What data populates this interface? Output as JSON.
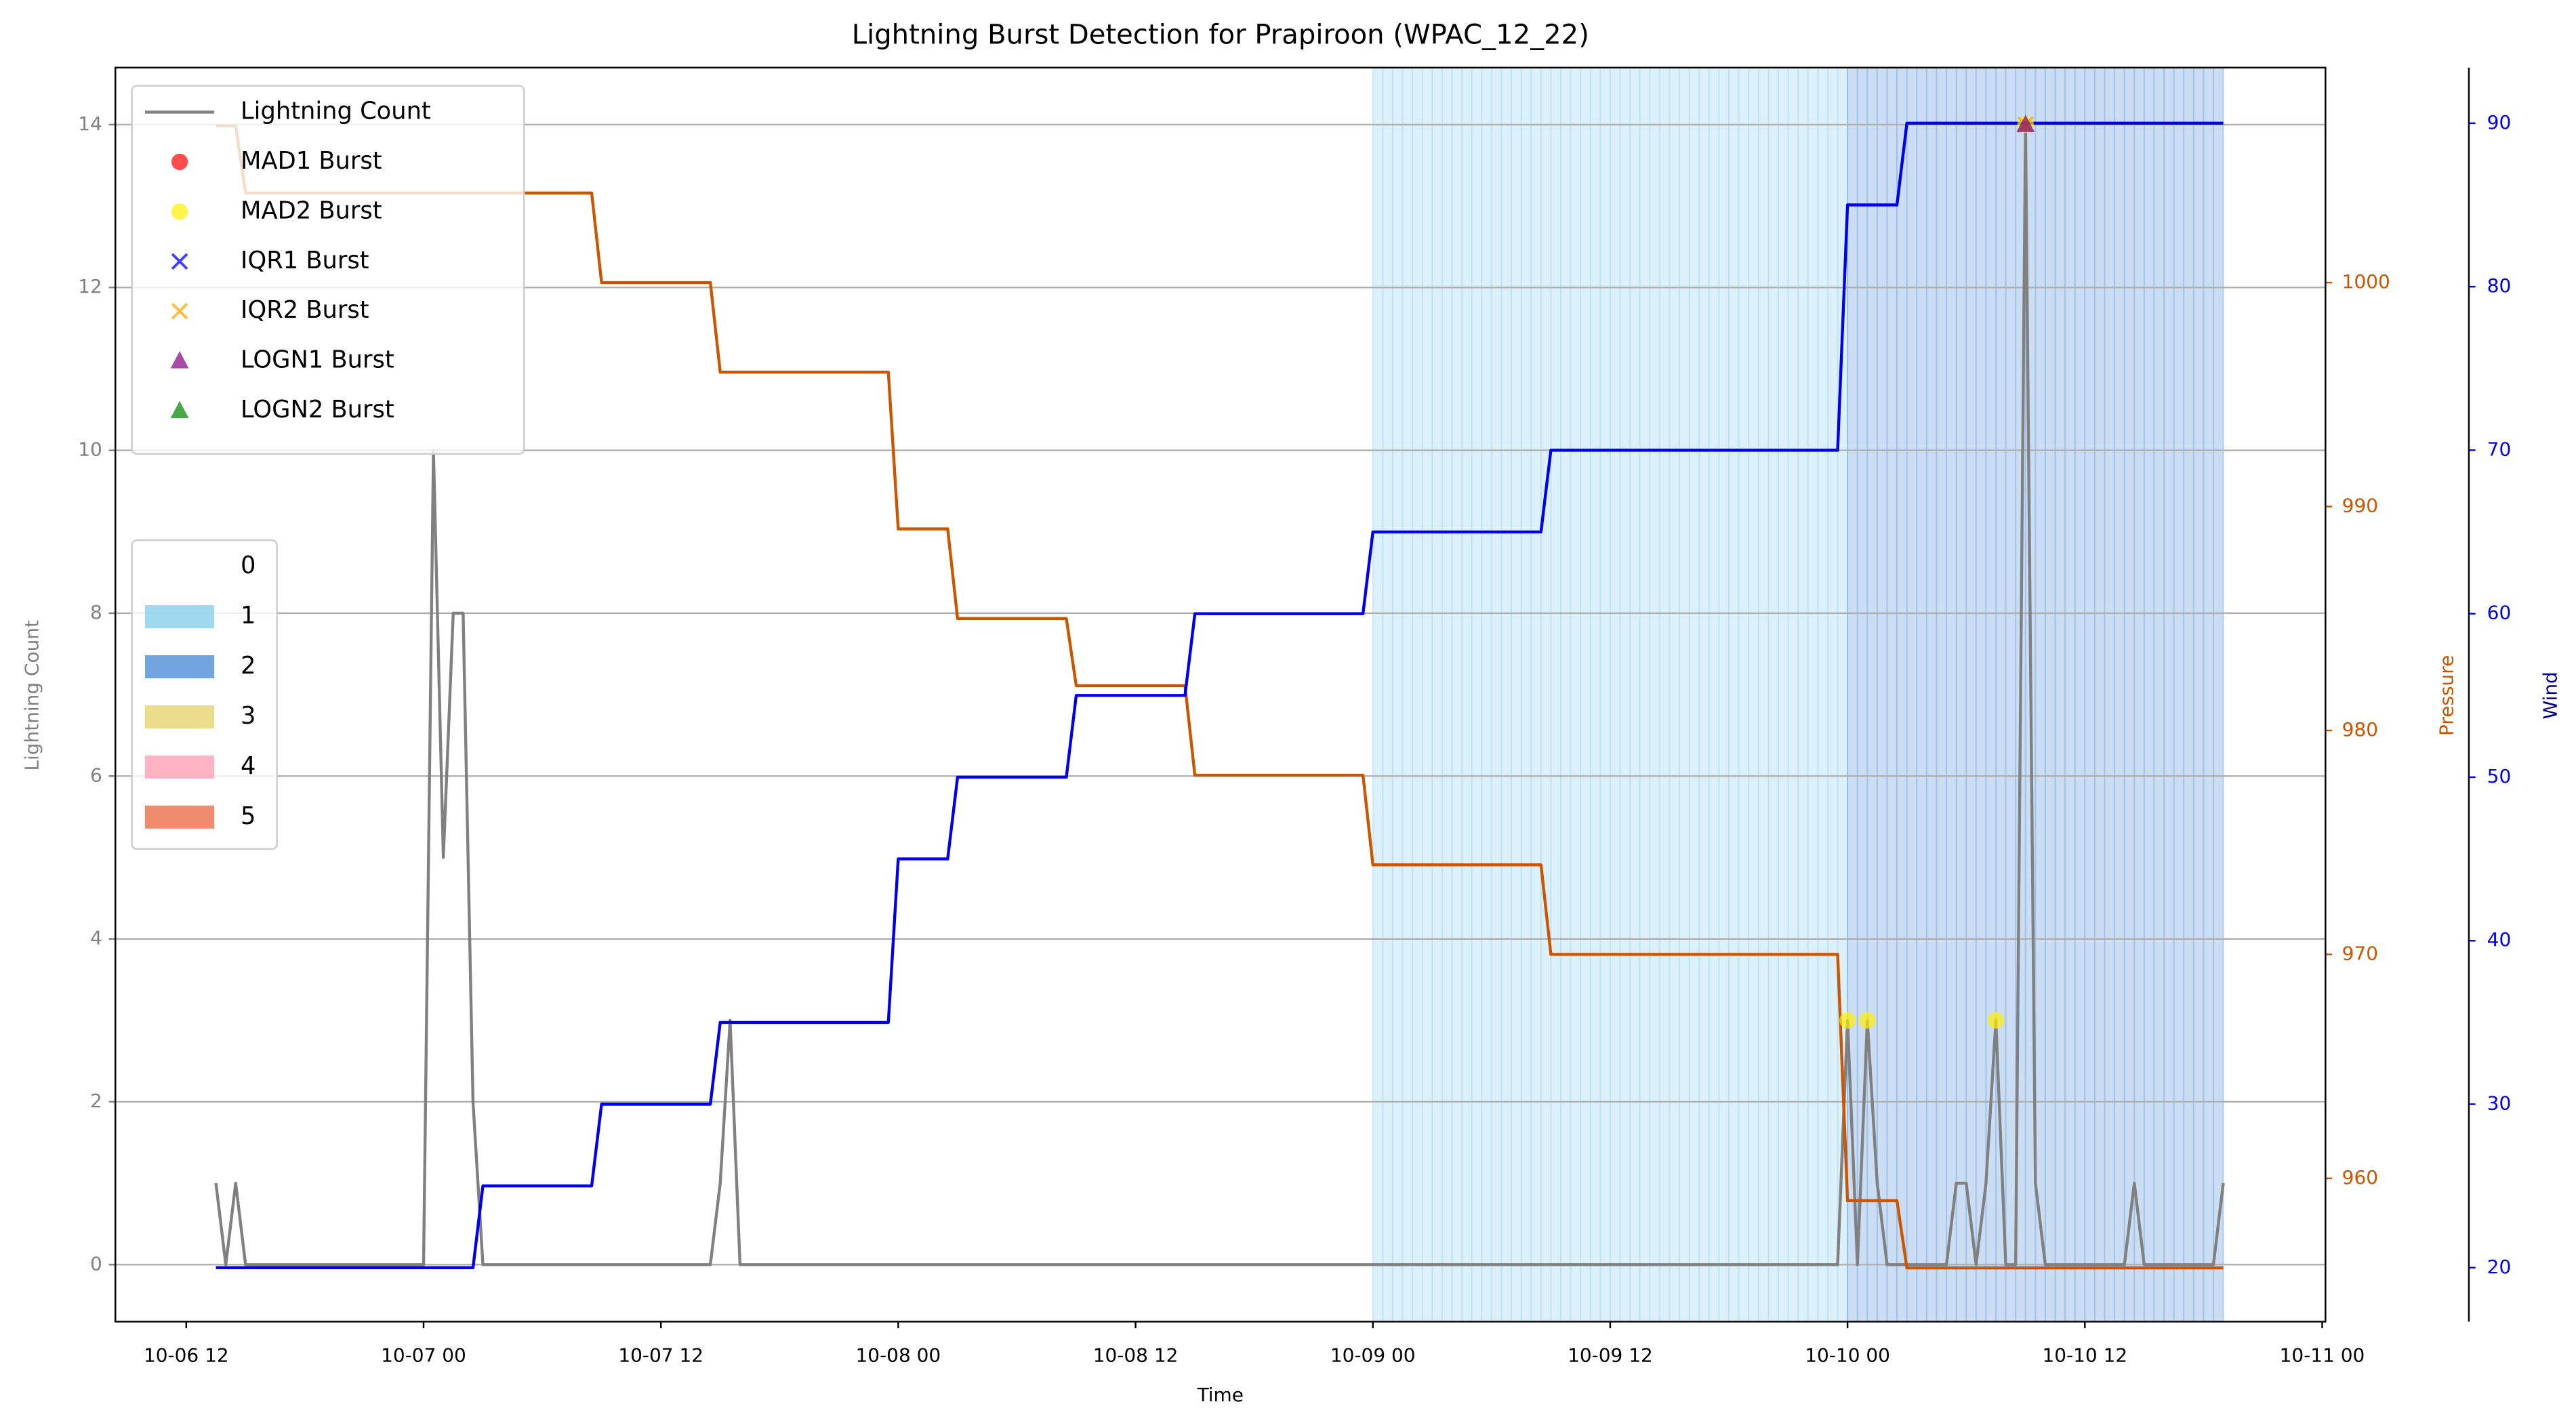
{
  "chart_data": {
    "type": "line",
    "title": "Lightning Burst Detection for Prapiroon (WPAC_12_22)",
    "xlabel": "Time",
    "ylabel": "Lightning Count",
    "xlim": [
      "10-06 08:25",
      "10-11 00:10"
    ],
    "xticks": [
      "10-06 12",
      "10-07 00",
      "10-07 12",
      "10-08 00",
      "10-08 12",
      "10-09 00",
      "10-09 12",
      "10-10 00",
      "10-10 12",
      "10-11 00"
    ],
    "ylim": [
      -0.7,
      14.7
    ],
    "yticks": [
      0,
      2,
      4,
      6,
      8,
      10,
      12,
      14
    ],
    "y2lim": [
      953.6,
      1009.6
    ],
    "y2ticks": [
      960,
      970,
      980,
      990,
      1000
    ],
    "y3lim": [
      16.7,
      93.4
    ],
    "y3ticks": [
      20,
      30,
      40,
      50,
      60,
      70,
      80,
      90
    ],
    "grid": true,
    "legend": "upper left",
    "series": [
      {
        "name": "Lightning Count",
        "color": "#808080",
        "axis": "y",
        "x": [
          "10-06 13:30",
          "10-06 14",
          "10-06 14:30",
          "10-06 15",
          "10-07 00",
          "10-07 00:30",
          "10-07 01",
          "10-07 01:30",
          "10-07 02",
          "10-07 02:30",
          "10-07 03",
          "10-07 14:30",
          "10-07 15",
          "10-07 15:30",
          "10-07 16",
          "10-09 23:30",
          "10-10 00",
          "10-10 00:30",
          "10-10 01",
          "10-10 01:30",
          "10-10 02",
          "10-10 05",
          "10-10 05:30",
          "10-10 06",
          "10-10 06:30",
          "10-10 07",
          "10-10 07:30",
          "10-10 08",
          "10-10 08:30",
          "10-10 09",
          "10-10 09:30",
          "10-10 10",
          "10-10 14",
          "10-10 14:30",
          "10-10 15",
          "10-10 18:30",
          "10-10 19"
        ],
        "values": [
          1,
          0,
          1,
          0,
          0,
          10,
          5,
          8,
          8,
          2,
          0,
          0,
          1,
          3,
          0,
          0,
          3,
          0,
          3,
          1,
          0,
          0,
          1,
          1,
          0,
          1,
          3,
          0,
          0,
          14,
          1,
          0,
          0,
          1,
          0,
          0,
          1
        ]
      },
      {
        "name": "Pressure",
        "color": "#cc5500",
        "axis": "y2",
        "x": [
          "10-06 13:30",
          "10-06 14:30",
          "10-06 15",
          "10-07 08:30",
          "10-07 09",
          "10-07 14:30",
          "10-07 15",
          "10-07 23:30",
          "10-08 00",
          "10-08 02:30",
          "10-08 03",
          "10-08 08:30",
          "10-08 09",
          "10-08 14:30",
          "10-08 15",
          "10-08 23:30",
          "10-09 00",
          "10-09 08:30",
          "10-09 09",
          "10-09 23:30",
          "10-10 00",
          "10-10 02:30",
          "10-10 03",
          "10-10 19"
        ],
        "values": [
          1007,
          1007,
          1004,
          1004,
          1000,
          1000,
          996,
          996,
          989,
          989,
          985,
          985,
          982,
          982,
          978,
          978,
          974,
          974,
          970,
          970,
          959,
          959,
          956,
          956
        ]
      },
      {
        "name": "Wind",
        "color": "#0000ee",
        "axis": "y3",
        "x": [
          "10-06 13:30",
          "10-07 02:30",
          "10-07 03",
          "10-07 08:30",
          "10-07 09",
          "10-07 14:30",
          "10-07 15",
          "10-07 23:30",
          "10-08 00",
          "10-08 02:30",
          "10-08 03",
          "10-08 08:30",
          "10-08 09",
          "10-08 14:30",
          "10-08 15",
          "10-08 23:30",
          "10-09 00",
          "10-09 08:30",
          "10-09 09",
          "10-09 23:30",
          "10-10 00",
          "10-10 02:30",
          "10-10 03",
          "10-10 19"
        ],
        "values": [
          20,
          20,
          25,
          25,
          30,
          30,
          35,
          35,
          45,
          45,
          50,
          50,
          55,
          55,
          60,
          60,
          65,
          65,
          70,
          70,
          85,
          85,
          90,
          90
        ]
      }
    ],
    "bursts": [
      {
        "name": "MAD1 Burst",
        "color": "#ff0000",
        "marker": "circle",
        "x": [],
        "values": []
      },
      {
        "name": "MAD2 Burst",
        "color": "#ffee00",
        "marker": "circle",
        "x": [
          "10-10 00",
          "10-10 01",
          "10-10 07:30",
          "10-10 09"
        ],
        "values": [
          3,
          3,
          3,
          14
        ]
      },
      {
        "name": "IQR1 Burst",
        "color": "#0000ff",
        "marker": "x",
        "x": [],
        "values": []
      },
      {
        "name": "IQR2 Burst",
        "color": "#ffa500",
        "marker": "x",
        "x": [
          "10-10 09"
        ],
        "values": [
          14
        ]
      },
      {
        "name": "LOGN1 Burst",
        "color": "#800080",
        "marker": "triangle",
        "x": [
          "10-10 09"
        ],
        "values": [
          14
        ]
      },
      {
        "name": "LOGN2 Burst",
        "color": "#008000",
        "marker": "triangle",
        "x": [],
        "values": []
      }
    ],
    "intensity": {
      "legend": "center left",
      "labels": [
        "0",
        "1",
        "2",
        "3",
        "4",
        "5"
      ],
      "colors": [
        "#ffffff",
        "#87ceeb",
        "#4f8fd6",
        "#e6d36e",
        "#ffa0b4",
        "#ec6f4a"
      ],
      "spans": [
        {
          "x": [
            "10-09 00",
            "10-10 00"
          ],
          "category": 1
        },
        {
          "x": [
            "10-10 00",
            "10-10 19"
          ],
          "category": 2
        }
      ]
    }
  }
}
